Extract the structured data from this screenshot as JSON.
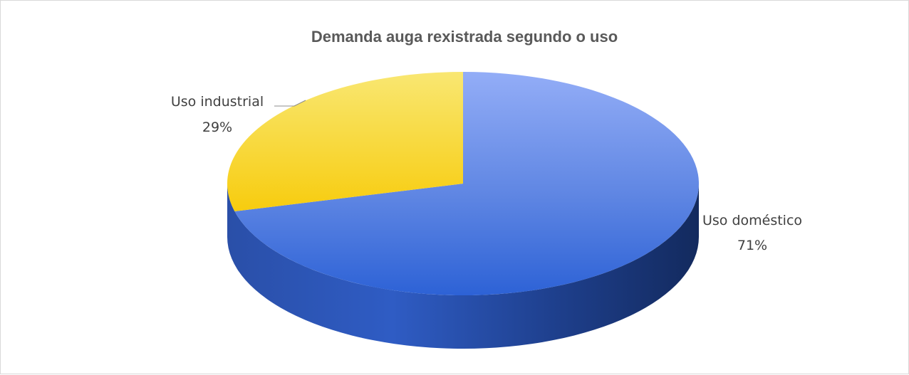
{
  "chart_data": {
    "type": "pie",
    "title": "Demanda auga rexistrada segundo o uso",
    "three_d": true,
    "categories": [
      "Uso doméstico",
      "Uso industrial"
    ],
    "values": [
      71,
      29
    ],
    "data_labels": [
      {
        "category": "Uso doméstico",
        "value_text": "71%"
      },
      {
        "category": "Uso industrial",
        "value_text": "29%"
      }
    ],
    "colors": {
      "Uso doméstico": "#4a78dc",
      "Uso industrial": "#f5cd1a"
    },
    "legend": "none"
  }
}
